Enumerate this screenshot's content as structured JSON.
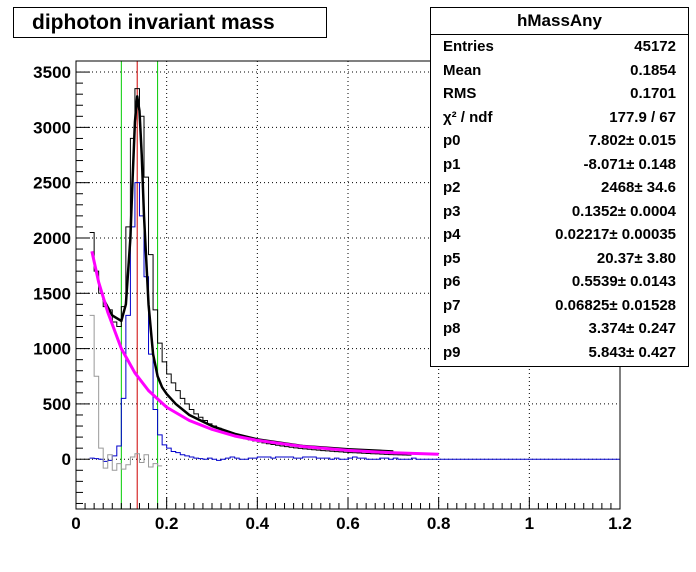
{
  "title": "diphoton invariant mass",
  "stats": {
    "name": "hMassAny",
    "rows": [
      {
        "label": "Entries",
        "value": "45172"
      },
      {
        "label": "Mean",
        "value": "0.1854"
      },
      {
        "label": "RMS",
        "value": "0.1701"
      },
      {
        "label": "χ² / ndf",
        "value": "177.9 / 67"
      },
      {
        "label": "p0",
        "value": "7.802± 0.015"
      },
      {
        "label": "p1",
        "value": "-8.071± 0.148"
      },
      {
        "label": "p2",
        "value": "2468± 34.6"
      },
      {
        "label": "p3",
        "value": "0.1352± 0.0004"
      },
      {
        "label": "p4",
        "value": "0.02217± 0.00035"
      },
      {
        "label": "p5",
        "value": "20.37± 3.80"
      },
      {
        "label": "p6",
        "value": "0.5539± 0.0143"
      },
      {
        "label": "p7",
        "value": "0.06825± 0.01528"
      },
      {
        "label": "p8",
        "value": "3.374± 0.247"
      },
      {
        "label": "p9",
        "value": "5.843± 0.427"
      }
    ]
  },
  "chart_data": {
    "type": "line",
    "title": "diphoton invariant mass",
    "xlabel": "",
    "ylabel": "",
    "xlim": [
      0,
      1.2
    ],
    "ylim": [
      -450,
      3600
    ],
    "grid": true,
    "x_ticks": [
      0,
      0.2,
      0.4,
      0.6,
      0.8,
      1,
      1.2
    ],
    "x_tick_labels": [
      "0",
      "0.2",
      "0.4",
      "0.6",
      "0.8",
      "1",
      "1.2"
    ],
    "y_ticks": [
      0,
      500,
      1000,
      1500,
      2000,
      2500,
      3000,
      3500
    ],
    "y_tick_labels": [
      "0",
      "500",
      "1000",
      "1500",
      "2000",
      "2500",
      "3000",
      "3500"
    ],
    "vertical_lines": [
      {
        "x": 0.1,
        "color": "#00cc00"
      },
      {
        "x": 0.135,
        "color": "#cc0000"
      },
      {
        "x": 0.18,
        "color": "#00cc00"
      }
    ],
    "colors": {
      "histogram": "#000000",
      "signal_hist": "#0000cc",
      "residual_hist": "#999999",
      "total_fit": "#000000",
      "background_fit": "#ff00ff"
    },
    "bin_width": 0.01,
    "series": [
      {
        "kind": "hist",
        "color_key": "histogram",
        "x_start": 0.03,
        "values": [
          2050,
          1700,
          1500,
          1380,
          1350,
          1240,
          1200,
          1380,
          2100,
          2900,
          3350,
          3100,
          2550,
          1850,
          1350,
          1050,
          880,
          770,
          690,
          620,
          550,
          500,
          450,
          410,
          380,
          350,
          320,
          300,
          280,
          260,
          240,
          225,
          210,
          198,
          186,
          175,
          165,
          156,
          148,
          140,
          133,
          126,
          120,
          114,
          108,
          103,
          98,
          94,
          90,
          86,
          82,
          78,
          75,
          72,
          69,
          66,
          63,
          60,
          58,
          56,
          54,
          52,
          50,
          48,
          46,
          44,
          42,
          40,
          39,
          38,
          37
        ]
      },
      {
        "kind": "hist",
        "color_key": "signal_hist",
        "x_start": 0.03,
        "values": [
          10,
          5,
          0,
          -20,
          -10,
          30,
          120,
          550,
          1300,
          2100,
          2500,
          2200,
          1650,
          950,
          450,
          220,
          130,
          100,
          70,
          60,
          40,
          30,
          20,
          10,
          5,
          0,
          10,
          0,
          -10,
          0,
          10,
          20,
          10,
          0,
          0,
          10,
          10,
          20,
          20,
          20,
          10,
          20,
          20,
          20,
          20,
          10,
          10,
          20,
          20,
          20,
          10,
          10,
          10,
          0,
          10,
          0,
          0,
          10,
          20,
          10,
          10,
          0,
          0,
          0,
          10,
          10,
          0,
          10,
          0,
          0,
          0,
          10,
          0,
          0,
          0,
          0,
          0,
          0,
          0,
          0,
          0,
          0,
          0,
          0,
          0,
          0,
          0,
          0,
          0,
          0,
          0,
          0,
          0,
          0,
          0,
          0,
          0,
          0,
          0,
          0,
          0,
          0,
          0,
          0,
          0,
          0,
          0,
          0,
          0,
          0,
          0,
          0,
          0,
          0,
          0,
          0,
          0
        ]
      },
      {
        "kind": "hist",
        "color_key": "residual_hist",
        "x_start": 0.03,
        "values": [
          1300,
          750,
          100,
          -80,
          40,
          -100,
          -40,
          -90,
          -50,
          20,
          50,
          -30,
          40,
          -70,
          -40,
          -60
        ]
      },
      {
        "kind": "curve",
        "color_key": "total_fit",
        "x": [
          0.06,
          0.08,
          0.1,
          0.11,
          0.12,
          0.125,
          0.13,
          0.135,
          0.14,
          0.145,
          0.15,
          0.16,
          0.17,
          0.18,
          0.19,
          0.2,
          0.22,
          0.25,
          0.3,
          0.35,
          0.4,
          0.5,
          0.6,
          0.7
        ],
        "y": [
          1450,
          1300,
          1250,
          1400,
          2000,
          2550,
          3050,
          3280,
          3150,
          2750,
          2200,
          1400,
          950,
          750,
          650,
          590,
          500,
          400,
          300,
          230,
          180,
          120,
          90,
          70
        ]
      },
      {
        "kind": "curve",
        "color_key": "background_fit",
        "x": [
          0.035,
          0.05,
          0.07,
          0.1,
          0.13,
          0.16,
          0.2,
          0.25,
          0.3,
          0.35,
          0.4,
          0.5,
          0.6,
          0.7,
          0.8
        ],
        "y": [
          1880,
          1600,
          1330,
          1000,
          780,
          620,
          470,
          350,
          270,
          210,
          170,
          115,
          80,
          58,
          45
        ]
      }
    ]
  }
}
